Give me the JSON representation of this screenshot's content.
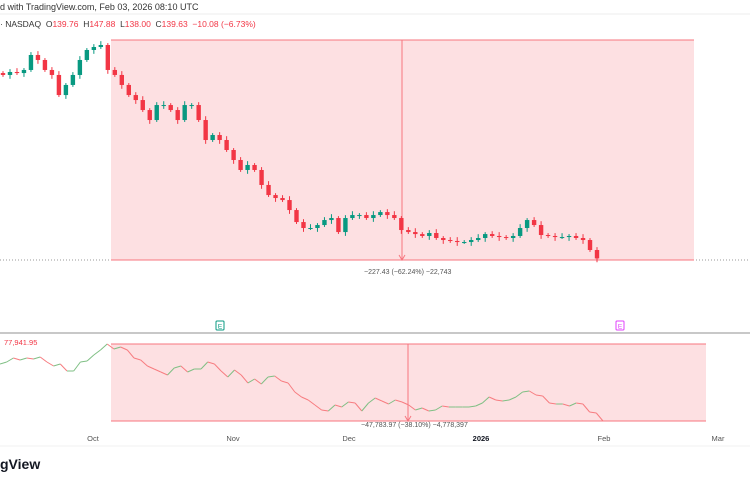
{
  "header": {
    "title": "d with TradingView.com, Feb 03, 2026 08:10 UTC"
  },
  "symbol": {
    "exchange": "· NASDAQ",
    "o_label": "O",
    "o": "139.76",
    "h_label": "H",
    "h": "147.88",
    "l_label": "L",
    "l": "138.00",
    "c_label": "C",
    "c": "139.63",
    "change": "−10.08 (−6.73%)"
  },
  "colors": {
    "up": "#089981",
    "down": "#f23645",
    "range_fill": "#fde0e2",
    "range_border": "#f7767f",
    "line_up": "#7fbf84",
    "line_down": "#f77c80"
  },
  "earnings_markers": [
    {
      "label": "E",
      "color": "#089981"
    },
    {
      "label": "E",
      "color": "#e040fb"
    }
  ],
  "footer": {
    "brand": "gView"
  },
  "chart_data": [
    {
      "type": "candlestick",
      "range_measure": "−227.43 (−62.24%) −22,743",
      "closes": [
        330.6,
        333.7,
        332.6,
        335.8,
        351.4,
        346.2,
        335.8,
        330.6,
        309.7,
        320.2,
        330.6,
        346.2,
        356.6,
        359.7,
        361.8,
        335.8,
        330.6,
        320.2,
        309.7,
        304.5,
        294.1,
        283.7,
        299.3,
        299.3,
        294.1,
        283.7,
        299.3,
        299.3,
        283.7,
        262.9,
        268.1,
        262.9,
        252.5,
        242.1,
        231.7,
        236.9,
        231.7,
        216.1,
        205.6,
        202.5,
        200.4,
        190.0,
        177.5,
        171.3,
        171.3,
        174.4,
        179.6,
        181.7,
        167.1,
        181.7,
        184.8,
        184.8,
        181.7,
        184.8,
        187.9,
        184.8,
        181.7,
        169.2,
        167.1,
        165.0,
        163.0,
        166.1,
        160.9,
        158.8,
        157.8,
        156.7,
        156.7,
        158.8,
        160.9,
        165.0,
        163.0,
        161.9,
        160.9,
        163.0,
        171.3,
        179.6,
        174.4,
        164.0,
        163.0,
        161.9,
        161.9,
        163.0,
        160.9,
        158.8,
        148.4,
        139.63
      ]
    },
    {
      "type": "line",
      "top_value": "77,941.95",
      "range_measure": "−47,783.97 (−38.10%) −4,778,397",
      "values": [
        65530,
        66771,
        69254,
        68012,
        69254,
        68633,
        69874,
        66771,
        64289,
        65530,
        61186,
        61186,
        66771,
        67392,
        71115,
        74218,
        77942,
        74839,
        76080,
        74218,
        69254,
        68012,
        64289,
        62427,
        60565,
        58703,
        63048,
        64289,
        60565,
        62427,
        62427,
        66771,
        65530,
        61186,
        57462,
        61806,
        58703,
        53739,
        56221,
        53118,
        57462,
        58083,
        54980,
        53739,
        48153,
        45050,
        43188,
        40085,
        36982,
        36362,
        40085,
        38844,
        41947,
        41326,
        36362,
        41326,
        44429,
        42567,
        40706,
        43188,
        41947,
        40085,
        36982,
        38223,
        36362,
        36982,
        39464,
        38844,
        38844,
        38844,
        38844,
        39464,
        41326,
        45050,
        43188,
        42567,
        43188,
        45050,
        48153,
        48774,
        46291,
        45671,
        41326,
        40706,
        40706,
        39464,
        41326,
        40706,
        35741,
        35121,
        30158
      ]
    },
    {
      "type": "x-axis",
      "ticks": [
        {
          "label": "Oct",
          "bold": false
        },
        {
          "label": "Nov",
          "bold": false
        },
        {
          "label": "Dec",
          "bold": false
        },
        {
          "label": "2026",
          "bold": true
        },
        {
          "label": "Feb",
          "bold": false
        },
        {
          "label": "Mar",
          "bold": false
        }
      ]
    }
  ]
}
